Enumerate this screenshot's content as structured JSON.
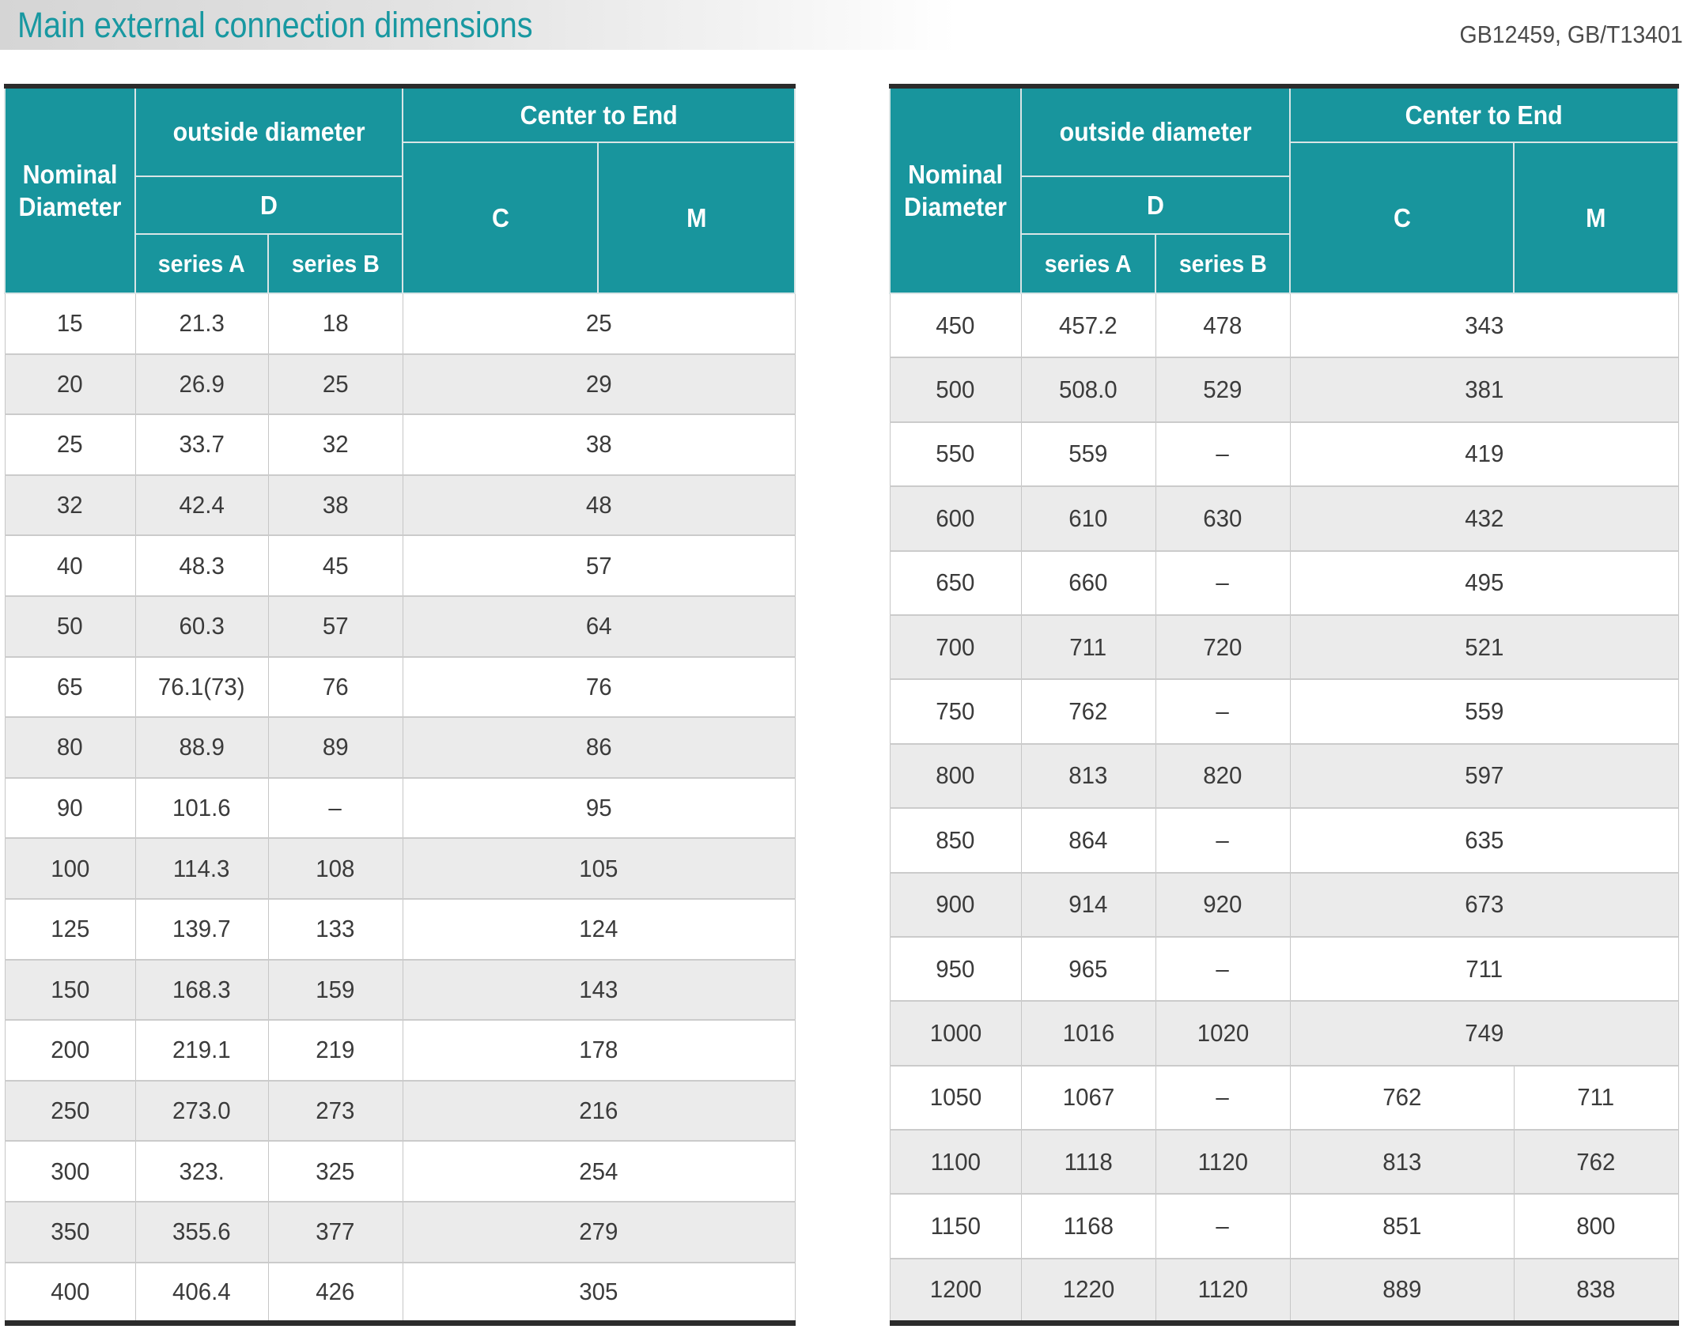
{
  "page": {
    "title": "Main external connection dimensions",
    "standards": "GB12459, GB/T13401"
  },
  "colors": {
    "accent_teal": "#18959D",
    "title_teal": "#1898A1",
    "row_alt_gray": "#EBEBEB",
    "grid_line": "#C6C6C6",
    "frame_dark": "#2B2B2B",
    "body_text": "#3B3B3B",
    "header_text": "#FFFFFF",
    "title_band_gray": "#D5D5D5"
  },
  "table_header": {
    "nominal_diameter": "Nominal Diameter",
    "outside_diameter": "outside diameter",
    "d": "D",
    "series_a": "series A",
    "series_b": "series B",
    "center_to_end": "Center to End",
    "c": "C",
    "m": "M"
  },
  "left_table": {
    "rows": [
      {
        "dn": "15",
        "series_a": "21.3",
        "series_b": "18",
        "cm": "25"
      },
      {
        "dn": "20",
        "series_a": "26.9",
        "series_b": "25",
        "cm": "29"
      },
      {
        "dn": "25",
        "series_a": "33.7",
        "series_b": "32",
        "cm": "38"
      },
      {
        "dn": "32",
        "series_a": "42.4",
        "series_b": "38",
        "cm": "48"
      },
      {
        "dn": "40",
        "series_a": "48.3",
        "series_b": "45",
        "cm": "57"
      },
      {
        "dn": "50",
        "series_a": "60.3",
        "series_b": "57",
        "cm": "64"
      },
      {
        "dn": "65",
        "series_a": "76.1(73)",
        "series_b": "76",
        "cm": "76"
      },
      {
        "dn": "80",
        "series_a": "88.9",
        "series_b": "89",
        "cm": "86"
      },
      {
        "dn": "90",
        "series_a": "101.6",
        "series_b": "–",
        "cm": "95"
      },
      {
        "dn": "100",
        "series_a": "114.3",
        "series_b": "108",
        "cm": "105"
      },
      {
        "dn": "125",
        "series_a": "139.7",
        "series_b": "133",
        "cm": "124"
      },
      {
        "dn": "150",
        "series_a": "168.3",
        "series_b": "159",
        "cm": "143"
      },
      {
        "dn": "200",
        "series_a": "219.1",
        "series_b": "219",
        "cm": "178"
      },
      {
        "dn": "250",
        "series_a": "273.0",
        "series_b": "273",
        "cm": "216"
      },
      {
        "dn": "300",
        "series_a": "323.",
        "series_b": "325",
        "cm": "254"
      },
      {
        "dn": "350",
        "series_a": "355.6",
        "series_b": "377",
        "cm": "279"
      },
      {
        "dn": "400",
        "series_a": "406.4",
        "series_b": "426",
        "cm": "305"
      }
    ]
  },
  "right_table": {
    "rows": [
      {
        "dn": "450",
        "series_a": "457.2",
        "series_b": "478",
        "cm": "343"
      },
      {
        "dn": "500",
        "series_a": "508.0",
        "series_b": "529",
        "cm": "381"
      },
      {
        "dn": "550",
        "series_a": "559",
        "series_b": "–",
        "cm": "419"
      },
      {
        "dn": "600",
        "series_a": "610",
        "series_b": "630",
        "cm": "432"
      },
      {
        "dn": "650",
        "series_a": "660",
        "series_b": "–",
        "cm": "495"
      },
      {
        "dn": "700",
        "series_a": "711",
        "series_b": "720",
        "cm": "521"
      },
      {
        "dn": "750",
        "series_a": "762",
        "series_b": "–",
        "cm": "559"
      },
      {
        "dn": "800",
        "series_a": "813",
        "series_b": "820",
        "cm": "597"
      },
      {
        "dn": "850",
        "series_a": "864",
        "series_b": "–",
        "cm": "635"
      },
      {
        "dn": "900",
        "series_a": "914",
        "series_b": "920",
        "cm": "673"
      },
      {
        "dn": "950",
        "series_a": "965",
        "series_b": "–",
        "cm": "711"
      },
      {
        "dn": "1000",
        "series_a": "1016",
        "series_b": "1020",
        "cm": "749"
      },
      {
        "dn": "1050",
        "series_a": "1067",
        "series_b": "–",
        "c": "762",
        "m": "711"
      },
      {
        "dn": "1100",
        "series_a": "1118",
        "series_b": "1120",
        "c": "813",
        "m": "762"
      },
      {
        "dn": "1150",
        "series_a": "1168",
        "series_b": "–",
        "c": "851",
        "m": "800"
      },
      {
        "dn": "1200",
        "series_a": "1220",
        "series_b": "1120",
        "c": "889",
        "m": "838"
      }
    ]
  }
}
